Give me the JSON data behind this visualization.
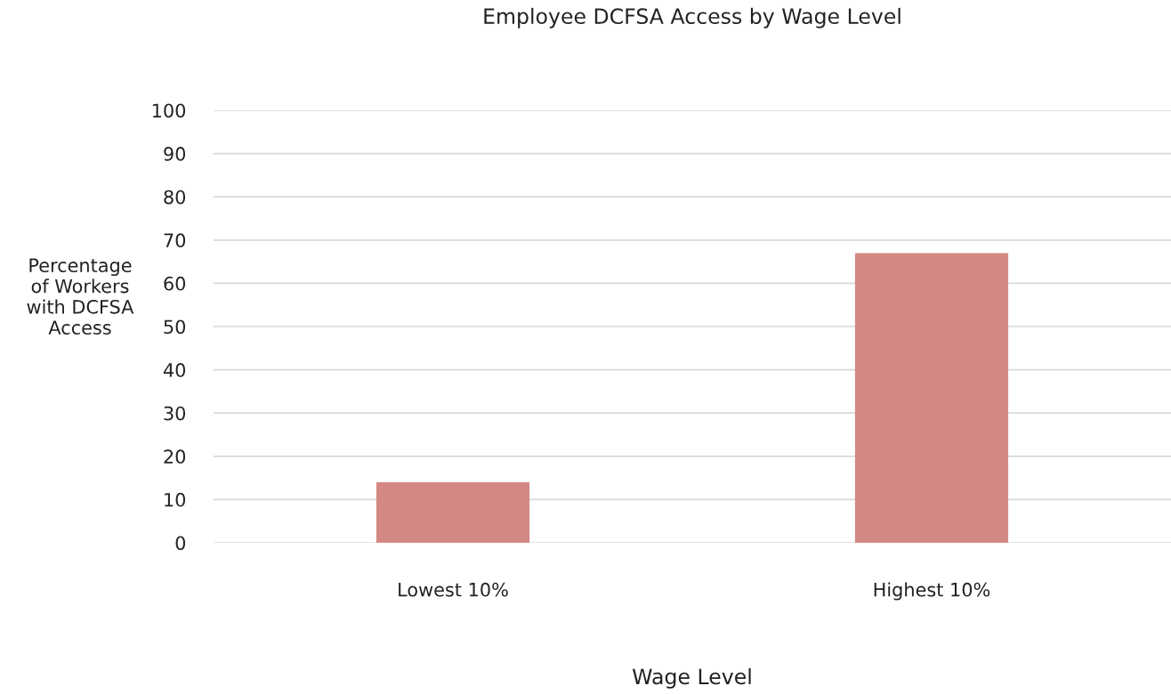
{
  "chart_data": {
    "type": "bar",
    "title": "Employee DCFSA Access by Wage Level",
    "xlabel": "Wage Level",
    "ylabel": "Percentage\nof Workers\nwith DCFSA\nAccess",
    "categories": [
      "Lowest 10%",
      "Highest 10%"
    ],
    "values": [
      14,
      67
    ],
    "color": "#d38884",
    "ylim": [
      0,
      100
    ],
    "yticks": [
      0,
      10,
      20,
      30,
      40,
      50,
      60,
      70,
      80,
      90,
      100
    ],
    "grid": "y",
    "legend": false
  }
}
